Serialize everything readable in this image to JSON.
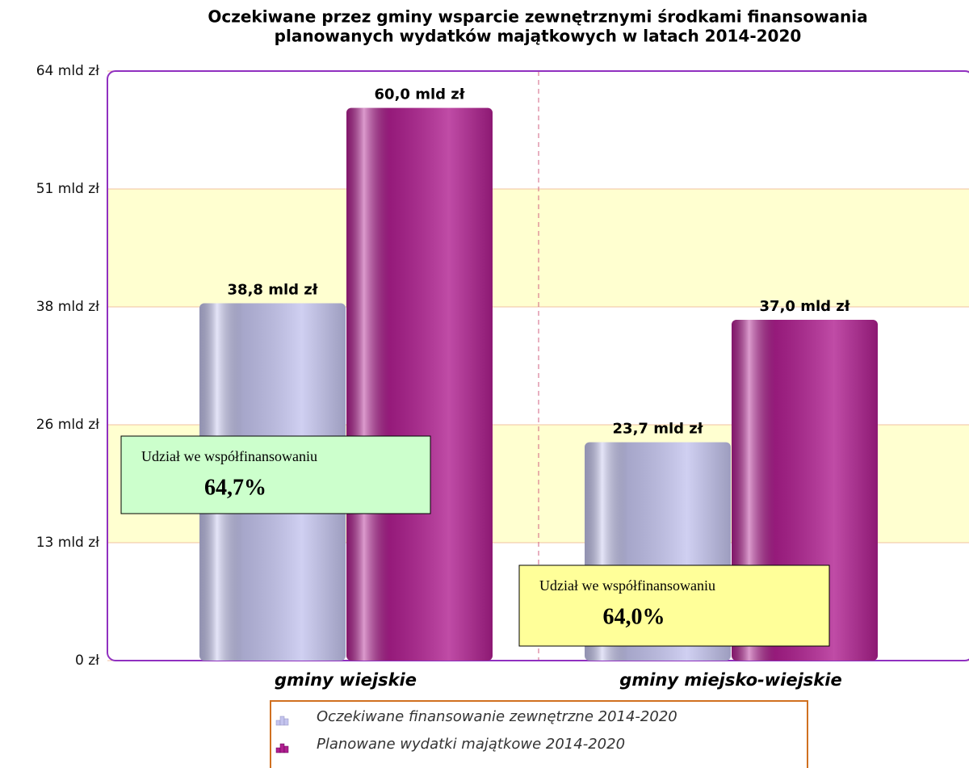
{
  "chart_data": {
    "type": "bar",
    "title": [
      "Oczekiwane przez gminy wsparcie zewnętrznymi środkami finansowania",
      "planowanych  wydatków majątkowych w latach 2014-2020"
    ],
    "categories": [
      "gminy wiejskie",
      "gminy miejsko-wiejskie"
    ],
    "series": [
      {
        "name": "Oczekiwane finansowanie zewnętrzne 2014-2020",
        "color": "#c4c4ee",
        "values": [
          38.8,
          23.7
        ],
        "value_labels": [
          "38,8 mld zł",
          "23,7 mld zł"
        ]
      },
      {
        "name": "Planowane wydatki majątkowe 2014-2020",
        "color": "#b01f90",
        "values": [
          60.0,
          37.0
        ],
        "value_labels": [
          "60,0 mld zł",
          "37,0 mld zł"
        ]
      }
    ],
    "ylim": [
      0,
      64
    ],
    "yticks": [
      {
        "value": 0,
        "label": "0 zł"
      },
      {
        "value": 12.8,
        "label": "13 mld zł"
      },
      {
        "value": 25.6,
        "label": "26 mld zł"
      },
      {
        "value": 38.4,
        "label": "38 mld zł"
      },
      {
        "value": 51.2,
        "label": "51 mld zł"
      },
      {
        "value": 64,
        "label": "64 mld zł"
      }
    ],
    "grid": true,
    "annotations": [
      {
        "text": "Udział we współfinansowaniu",
        "value": "64,7%",
        "color": "#ccffcc"
      },
      {
        "text": "Udział we współfinansowaniu",
        "value": "64,0%",
        "color": "#ffff99"
      }
    ]
  }
}
